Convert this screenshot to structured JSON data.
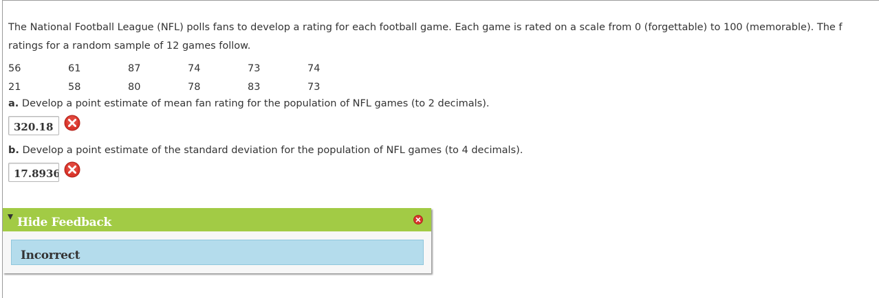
{
  "question": {
    "line1": "The National Football League (NFL) polls fans to develop a rating for each football game. Each game is rated on a scale from 0 (forgettable) to 100 (memorable). The f",
    "line2": "ratings for a random sample of 12 games follow."
  },
  "ratings": {
    "row1": [
      "56",
      "61",
      "87",
      "74",
      "73",
      "74"
    ],
    "row2": [
      "21",
      "58",
      "80",
      "78",
      "83",
      "73"
    ]
  },
  "part_a": {
    "letter": "a.",
    "text": "Develop a point estimate of mean fan rating for the population of NFL games (to 2 decimals).",
    "answer": "320.18",
    "status_icon": "incorrect-x-icon"
  },
  "part_b": {
    "letter": "b.",
    "text": "Develop a point estimate of the standard deviation for the population of NFL games (to 4 decimals).",
    "answer": "17.8936",
    "status_icon": "incorrect-x-icon"
  },
  "feedback": {
    "toggle_label": "Hide Feedback",
    "result": "Incorrect",
    "header_color": "#a2cb45",
    "result_bg_color": "#b4dcec"
  },
  "colors": {
    "error_red": "#d9352b"
  }
}
